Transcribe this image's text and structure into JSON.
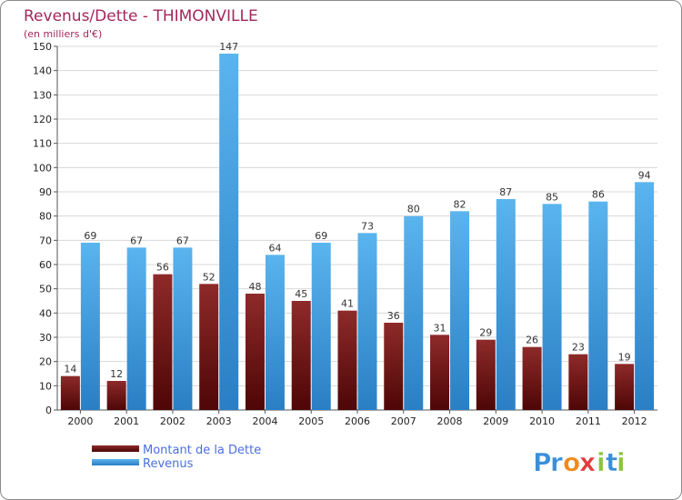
{
  "chart_data": {
    "type": "bar",
    "title": "Revenus/Dette - THIMONVILLE",
    "subtitle": "(en milliers d'€)",
    "categories": [
      "2000",
      "2001",
      "2002",
      "2003",
      "2004",
      "2005",
      "2006",
      "2007",
      "2008",
      "2009",
      "2010",
      "2011",
      "2012"
    ],
    "series": [
      {
        "name": "Montant de la Dette",
        "color": "#7a1a1a",
        "values": [
          14,
          12,
          56,
          52,
          48,
          45,
          41,
          36,
          31,
          29,
          26,
          23,
          19
        ]
      },
      {
        "name": "Revenus",
        "color": "#3f9be0",
        "values": [
          69,
          67,
          67,
          147,
          64,
          69,
          73,
          80,
          82,
          87,
          85,
          86,
          94
        ]
      }
    ],
    "ylim": [
      0,
      150
    ],
    "ytick_step": 10,
    "grid": true,
    "legend_position": "bottom-left",
    "xlabel": "",
    "ylabel": ""
  },
  "logo": {
    "text": "Proxiti",
    "letters": [
      {
        "ch": "P",
        "color": "#3a8fd8"
      },
      {
        "ch": "r",
        "color": "#3a8fd8"
      },
      {
        "ch": "o",
        "color": "#f08a1c"
      },
      {
        "ch": "x",
        "color": "#e23b3b"
      },
      {
        "ch": "i",
        "color": "#8ac43f"
      },
      {
        "ch": "t",
        "color": "#3a8fd8"
      },
      {
        "ch": "i",
        "color": "#8ac43f"
      }
    ]
  }
}
